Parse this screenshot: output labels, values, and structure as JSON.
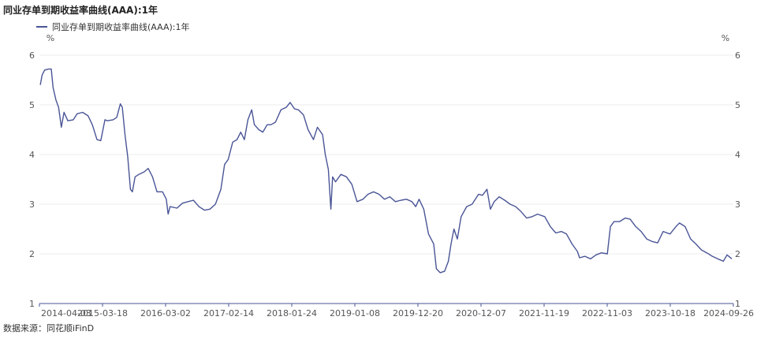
{
  "chart_data": {
    "type": "line",
    "title": "同业存单到期收益率曲线(AAA):1年",
    "y_unit_left": "%",
    "y_unit_right": "%",
    "ylim": [
      1,
      6
    ],
    "y_ticks": [
      1,
      2,
      3,
      4,
      5,
      6
    ],
    "x_range": [
      "2014-03-05",
      "2024-10-05"
    ],
    "x_tick_labels": [
      "2014-04-03",
      "2015-03-18",
      "2016-03-02",
      "2017-02-14",
      "2018-01-24",
      "2019-01-08",
      "2019-12-20",
      "2020-12-07",
      "2021-11-19",
      "2022-11-03",
      "2023-10-18",
      "2024-09-26"
    ],
    "grid": "horizontal",
    "legend_position": "top-left",
    "colors": {
      "line": "#4a5596",
      "grid": "#ececec",
      "axis": "#4a5596"
    },
    "series": [
      {
        "name": "同业存单到期收益率曲线(AAA):1年",
        "points": [
          [
            "2014-03-10",
            5.4
          ],
          [
            "2014-03-20",
            5.6
          ],
          [
            "2014-04-03",
            5.7
          ],
          [
            "2014-04-25",
            5.72
          ],
          [
            "2014-05-10",
            5.72
          ],
          [
            "2014-05-20",
            5.35
          ],
          [
            "2014-06-05",
            5.1
          ],
          [
            "2014-06-20",
            4.95
          ],
          [
            "2014-07-05",
            4.55
          ],
          [
            "2014-07-20",
            4.85
          ],
          [
            "2014-08-10",
            4.68
          ],
          [
            "2014-09-10",
            4.7
          ],
          [
            "2014-10-01",
            4.82
          ],
          [
            "2014-11-01",
            4.85
          ],
          [
            "2014-12-01",
            4.78
          ],
          [
            "2014-12-25",
            4.6
          ],
          [
            "2015-01-20",
            4.3
          ],
          [
            "2015-02-10",
            4.28
          ],
          [
            "2015-03-05",
            4.7
          ],
          [
            "2015-03-18",
            4.68
          ],
          [
            "2015-04-20",
            4.7
          ],
          [
            "2015-05-10",
            4.75
          ],
          [
            "2015-05-30",
            5.02
          ],
          [
            "2015-06-10",
            4.95
          ],
          [
            "2015-06-25",
            4.4
          ],
          [
            "2015-07-10",
            3.95
          ],
          [
            "2015-07-25",
            3.3
          ],
          [
            "2015-08-05",
            3.25
          ],
          [
            "2015-08-20",
            3.55
          ],
          [
            "2015-09-10",
            3.6
          ],
          [
            "2015-10-10",
            3.65
          ],
          [
            "2015-11-01",
            3.72
          ],
          [
            "2015-11-25",
            3.55
          ],
          [
            "2015-12-20",
            3.25
          ],
          [
            "2016-01-20",
            3.25
          ],
          [
            "2016-02-10",
            3.1
          ],
          [
            "2016-02-20",
            2.8
          ],
          [
            "2016-03-02",
            2.95
          ],
          [
            "2016-04-10",
            2.92
          ],
          [
            "2016-05-10",
            3.02
          ],
          [
            "2016-06-10",
            3.05
          ],
          [
            "2016-07-10",
            3.08
          ],
          [
            "2016-08-10",
            2.95
          ],
          [
            "2016-09-10",
            2.88
          ],
          [
            "2016-10-10",
            2.9
          ],
          [
            "2016-11-10",
            3.0
          ],
          [
            "2016-12-10",
            3.3
          ],
          [
            "2016-12-31",
            3.8
          ],
          [
            "2017-01-20",
            3.9
          ],
          [
            "2017-02-14",
            4.25
          ],
          [
            "2017-03-10",
            4.3
          ],
          [
            "2017-03-31",
            4.45
          ],
          [
            "2017-04-20",
            4.3
          ],
          [
            "2017-05-10",
            4.7
          ],
          [
            "2017-05-31",
            4.9
          ],
          [
            "2017-06-15",
            4.6
          ],
          [
            "2017-07-10",
            4.5
          ],
          [
            "2017-08-01",
            4.45
          ],
          [
            "2017-08-25",
            4.6
          ],
          [
            "2017-09-15",
            4.6
          ],
          [
            "2017-10-10",
            4.65
          ],
          [
            "2017-11-10",
            4.9
          ],
          [
            "2017-12-10",
            4.95
          ],
          [
            "2017-12-31",
            5.05
          ],
          [
            "2018-01-24",
            4.92
          ],
          [
            "2018-02-15",
            4.9
          ],
          [
            "2018-03-15",
            4.8
          ],
          [
            "2018-04-10",
            4.5
          ],
          [
            "2018-05-10",
            4.3
          ],
          [
            "2018-06-01",
            4.55
          ],
          [
            "2018-06-30",
            4.4
          ],
          [
            "2018-07-15",
            4.0
          ],
          [
            "2018-08-01",
            3.7
          ],
          [
            "2018-08-15",
            2.9
          ],
          [
            "2018-08-25",
            3.55
          ],
          [
            "2018-09-10",
            3.45
          ],
          [
            "2018-10-10",
            3.6
          ],
          [
            "2018-11-10",
            3.55
          ],
          [
            "2018-12-10",
            3.4
          ],
          [
            "2019-01-08",
            3.05
          ],
          [
            "2019-02-10",
            3.1
          ],
          [
            "2019-03-10",
            3.2
          ],
          [
            "2019-04-10",
            3.25
          ],
          [
            "2019-05-10",
            3.2
          ],
          [
            "2019-06-10",
            3.1
          ],
          [
            "2019-07-10",
            3.15
          ],
          [
            "2019-08-10",
            3.05
          ],
          [
            "2019-09-10",
            3.08
          ],
          [
            "2019-10-10",
            3.1
          ],
          [
            "2019-11-10",
            3.05
          ],
          [
            "2019-12-01",
            2.95
          ],
          [
            "2019-12-20",
            3.1
          ],
          [
            "2020-01-15",
            2.9
          ],
          [
            "2020-02-10",
            2.4
          ],
          [
            "2020-03-10",
            2.2
          ],
          [
            "2020-03-25",
            1.7
          ],
          [
            "2020-04-15",
            1.62
          ],
          [
            "2020-05-10",
            1.65
          ],
          [
            "2020-05-31",
            1.85
          ],
          [
            "2020-06-15",
            2.2
          ],
          [
            "2020-07-01",
            2.5
          ],
          [
            "2020-07-20",
            2.3
          ],
          [
            "2020-08-10",
            2.75
          ],
          [
            "2020-09-10",
            2.95
          ],
          [
            "2020-10-10",
            3.0
          ],
          [
            "2020-11-15",
            3.2
          ],
          [
            "2020-12-07",
            3.18
          ],
          [
            "2021-01-01",
            3.3
          ],
          [
            "2021-01-20",
            2.9
          ],
          [
            "2021-02-10",
            3.05
          ],
          [
            "2021-03-10",
            3.15
          ],
          [
            "2021-04-10",
            3.08
          ],
          [
            "2021-05-10",
            3.0
          ],
          [
            "2021-06-10",
            2.95
          ],
          [
            "2021-07-10",
            2.85
          ],
          [
            "2021-08-10",
            2.72
          ],
          [
            "2021-09-10",
            2.75
          ],
          [
            "2021-10-10",
            2.8
          ],
          [
            "2021-11-19",
            2.75
          ],
          [
            "2021-12-20",
            2.55
          ],
          [
            "2022-01-20",
            2.42
          ],
          [
            "2022-02-20",
            2.45
          ],
          [
            "2022-03-20",
            2.4
          ],
          [
            "2022-04-20",
            2.2
          ],
          [
            "2022-05-20",
            2.05
          ],
          [
            "2022-06-01",
            1.92
          ],
          [
            "2022-07-01",
            1.95
          ],
          [
            "2022-08-01",
            1.9
          ],
          [
            "2022-09-01",
            1.98
          ],
          [
            "2022-10-01",
            2.02
          ],
          [
            "2022-11-03",
            2.0
          ],
          [
            "2022-11-20",
            2.55
          ],
          [
            "2022-12-10",
            2.65
          ],
          [
            "2023-01-10",
            2.65
          ],
          [
            "2023-02-10",
            2.72
          ],
          [
            "2023-03-10",
            2.7
          ],
          [
            "2023-04-10",
            2.55
          ],
          [
            "2023-05-10",
            2.45
          ],
          [
            "2023-06-10",
            2.3
          ],
          [
            "2023-07-10",
            2.25
          ],
          [
            "2023-08-10",
            2.22
          ],
          [
            "2023-09-10",
            2.45
          ],
          [
            "2023-10-18",
            2.4
          ],
          [
            "2023-11-20",
            2.55
          ],
          [
            "2023-12-10",
            2.62
          ],
          [
            "2024-01-10",
            2.55
          ],
          [
            "2024-02-10",
            2.3
          ],
          [
            "2024-03-10",
            2.2
          ],
          [
            "2024-04-10",
            2.08
          ],
          [
            "2024-05-10",
            2.02
          ],
          [
            "2024-06-10",
            1.95
          ],
          [
            "2024-07-10",
            1.9
          ],
          [
            "2024-08-10",
            1.85
          ],
          [
            "2024-08-31",
            1.98
          ],
          [
            "2024-09-26",
            1.9
          ]
        ]
      }
    ]
  },
  "source_text": "数据来源：同花顺iFinD"
}
